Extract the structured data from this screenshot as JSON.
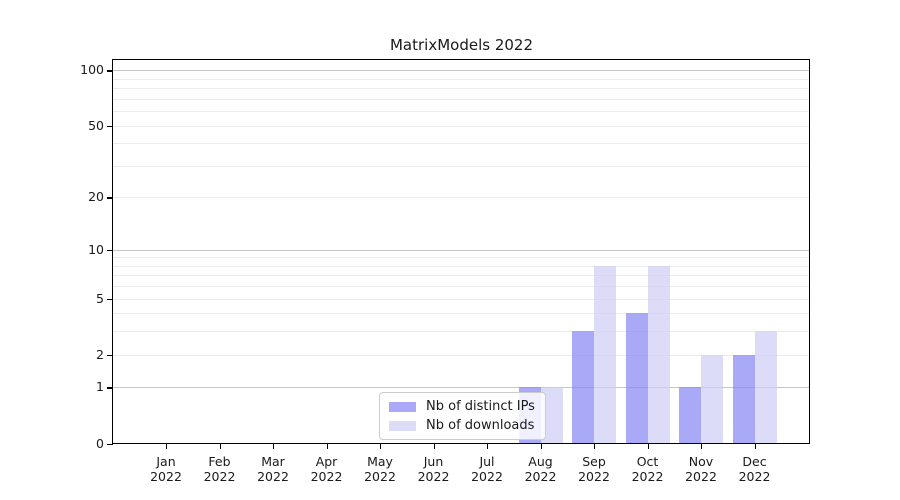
{
  "title": "MatrixModels 2022",
  "legend": {
    "items": [
      {
        "label": "Nb of distinct IPs",
        "color_key": "ips_bar"
      },
      {
        "label": "Nb of downloads",
        "color_key": "downloads_bar"
      }
    ]
  },
  "colors": {
    "ips_bar": "rgba(136,136,245,0.72)",
    "downloads_bar": "rgba(206,206,245,0.72)",
    "grid_major": "#c6c6c6",
    "grid_minor": "#ececec",
    "spine": "#000000",
    "text": "#1a1a1a",
    "background": "#ffffff"
  },
  "chart_data": {
    "type": "bar",
    "title": "MatrixModels 2022",
    "categories": [
      "Jan",
      "Feb",
      "Mar",
      "Apr",
      "May",
      "Jun",
      "Jul",
      "Aug",
      "Sep",
      "Oct",
      "Nov",
      "Dec"
    ],
    "year_label": "2022",
    "series": [
      {
        "name": "Nb of distinct IPs",
        "values": [
          0,
          0,
          0,
          0,
          0,
          0,
          0,
          1,
          3,
          4,
          1,
          2
        ]
      },
      {
        "name": "Nb of downloads",
        "values": [
          0,
          0,
          0,
          0,
          0,
          0,
          0,
          1,
          8,
          8,
          2,
          3
        ]
      }
    ],
    "yscale": "log1p",
    "ylim": [
      0,
      115
    ],
    "yticks": [
      0,
      1,
      2,
      5,
      10,
      20,
      50,
      100
    ],
    "major_grid_values": [
      1,
      10,
      100
    ],
    "minor_grid_values": [
      2,
      3,
      4,
      5,
      6,
      7,
      8,
      9,
      20,
      30,
      40,
      50,
      60,
      70,
      80,
      90
    ],
    "grid": true,
    "legend_position": "lower center-left inside plot",
    "xlabel": "",
    "ylabel": ""
  }
}
